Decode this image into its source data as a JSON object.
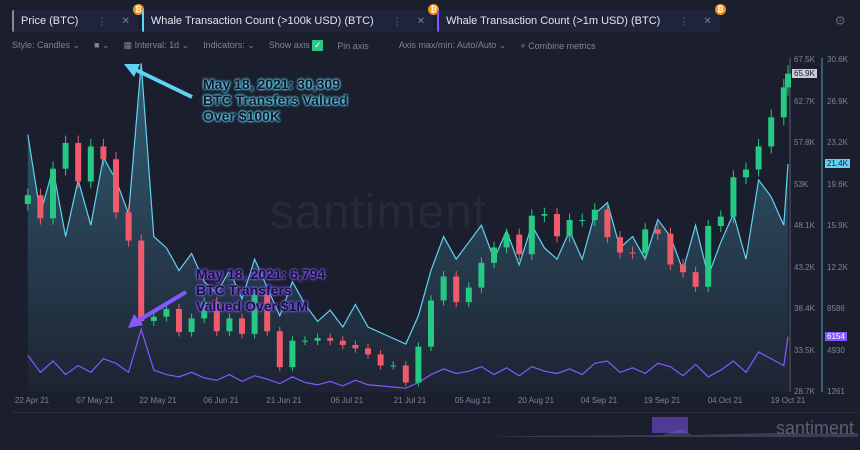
{
  "tabs": [
    {
      "label": "Price (BTC)",
      "color": "#8a8a8a"
    },
    {
      "label": "Whale Transaction Count (>100k USD) (BTC)",
      "color": "#5fd3f3"
    },
    {
      "label": "Whale Transaction Count (>1m USD) (BTC)",
      "color": "#8358ff"
    }
  ],
  "toolbar": {
    "style": "Style: Candles",
    "interval": "Interval: 1d",
    "indicators": "Indicators:",
    "show_axis": "Show axis",
    "pin_axis": "Pin axis",
    "axis_maxmin": "Axis max/min: Auto/Auto",
    "combine": "+ Combine metrics"
  },
  "watermark": "santiment",
  "nav_watermark": "santiment",
  "annotations": {
    "whale100k": [
      "May 18, 2021: 30,309",
      "BTC Transfers Valued",
      "Over $100K"
    ],
    "whale1m": [
      "May 18, 2021: 6,794",
      "BTC Transfers",
      "Valued Over $1M"
    ]
  },
  "chart_data": {
    "type": "candlestick+line",
    "x": [
      "2021-04-21",
      "2021-04-24",
      "2021-04-27",
      "2021-04-30",
      "2021-05-03",
      "2021-05-06",
      "2021-05-09",
      "2021-05-12",
      "2021-05-15",
      "2021-05-18",
      "2021-05-21",
      "2021-05-24",
      "2021-05-27",
      "2021-05-30",
      "2021-06-02",
      "2021-06-05",
      "2021-06-08",
      "2021-06-11",
      "2021-06-14",
      "2021-06-17",
      "2021-06-20",
      "2021-06-23",
      "2021-06-26",
      "2021-06-29",
      "2021-07-02",
      "2021-07-05",
      "2021-07-08",
      "2021-07-11",
      "2021-07-14",
      "2021-07-17",
      "2021-07-20",
      "2021-07-23",
      "2021-07-26",
      "2021-07-29",
      "2021-08-01",
      "2021-08-04",
      "2021-08-07",
      "2021-08-10",
      "2021-08-13",
      "2021-08-16",
      "2021-08-19",
      "2021-08-22",
      "2021-08-25",
      "2021-08-28",
      "2021-08-31",
      "2021-09-03",
      "2021-09-06",
      "2021-09-09",
      "2021-09-12",
      "2021-09-15",
      "2021-09-18",
      "2021-09-21",
      "2021-09-24",
      "2021-09-27",
      "2021-09-30",
      "2021-10-03",
      "2021-10-06",
      "2021-10-09",
      "2021-10-12",
      "2021-10-15",
      "2021-10-18",
      "2021-10-19"
    ],
    "series": [
      {
        "name": "Price (BTC)",
        "color": "#26c983",
        "down_color": "#ef5b6b",
        "axis": "price",
        "values": [
          51700,
          49000,
          54800,
          57800,
          53300,
          57400,
          55900,
          49700,
          46400,
          37000,
          37500,
          38400,
          35700,
          37300,
          39200,
          35800,
          37300,
          35500,
          40200,
          35800,
          31600,
          34700,
          34700,
          35000,
          34700,
          34200,
          33800,
          33100,
          31800,
          31800,
          29800,
          34000,
          39400,
          42200,
          39200,
          40900,
          43800,
          45600,
          47100,
          44800,
          49300,
          49500,
          46900,
          48800,
          48800,
          50000,
          46800,
          45000,
          44900,
          47700,
          47200,
          43600,
          42700,
          41000,
          48100,
          49200,
          53800,
          54700,
          57400,
          60800,
          64300,
          65900
        ]
      },
      {
        "name": "Whale Transaction Count (>100k USD) (BTC)",
        "color": "#5fd3f3",
        "axis": "whale",
        "values": [
          24000,
          17000,
          21000,
          15000,
          20000,
          16000,
          22000,
          20000,
          17000,
          30309,
          15000,
          14000,
          12000,
          13500,
          11000,
          10000,
          12000,
          9500,
          13000,
          10500,
          8000,
          11000,
          9000,
          7500,
          8500,
          7000,
          9000,
          7000,
          6500,
          6000,
          5500,
          8000,
          12000,
          15000,
          13000,
          14500,
          16000,
          13000,
          15500,
          12500,
          16000,
          14000,
          13000,
          15500,
          13000,
          17000,
          18000,
          14000,
          15000,
          13000,
          16500,
          15000,
          12000,
          16000,
          11500,
          14500,
          17000,
          13000,
          20000,
          18500,
          16000,
          21400
        ]
      },
      {
        "name": "Whale Transaction Count (>1m USD) (BTC)",
        "color": "#8358ff",
        "axis": "whale",
        "values": [
          4500,
          3000,
          4000,
          2800,
          3600,
          3000,
          4200,
          3800,
          3000,
          6794,
          3200,
          2800,
          2600,
          3000,
          2500,
          2300,
          2800,
          2200,
          2700,
          2400,
          2000,
          2600,
          2100,
          1900,
          2200,
          1800,
          2300,
          1900,
          1800,
          1700,
          1600,
          2100,
          2800,
          3300,
          2900,
          3100,
          3500,
          2800,
          3400,
          2700,
          3500,
          3100,
          2900,
          3300,
          2800,
          3800,
          4000,
          3000,
          3400,
          2900,
          3800,
          3500,
          2700,
          3700,
          2600,
          3200,
          4000,
          3000,
          4800,
          4200,
          3600,
          6154
        ]
      }
    ],
    "price_axis": {
      "range": [
        28700,
        67500
      ],
      "ticks": [
        "67.5K",
        "62.7K",
        "57.8K",
        "53K",
        "48.1K",
        "43.2K",
        "38.4K",
        "33.5K",
        "28.7K"
      ],
      "last_label": "65.9K"
    },
    "whale_axis": {
      "range": [
        1261,
        30600
      ],
      "ticks": [
        "30.6K",
        "26.9K",
        "23.2K",
        "19.6K",
        "15.9K",
        "12.2K",
        "8586",
        "4930",
        "1261"
      ],
      "last_label_100k": "21.4K",
      "last_label_1m": "6154"
    },
    "x_ticks": [
      {
        "date": "2021-04-22",
        "label": "22 Apr 21"
      },
      {
        "date": "2021-05-07",
        "label": "07 May 21"
      },
      {
        "date": "2021-05-22",
        "label": "22 May 21"
      },
      {
        "date": "2021-06-06",
        "label": "06 Jun 21"
      },
      {
        "date": "2021-06-21",
        "label": "21 Jun 21"
      },
      {
        "date": "2021-07-06",
        "label": "06 Jul 21"
      },
      {
        "date": "2021-07-21",
        "label": "21 Jul 21"
      },
      {
        "date": "2021-08-05",
        "label": "05 Aug 21"
      },
      {
        "date": "2021-08-20",
        "label": "20 Aug 21"
      },
      {
        "date": "2021-09-04",
        "label": "04 Sep 21"
      },
      {
        "date": "2021-09-19",
        "label": "19 Sep 21"
      },
      {
        "date": "2021-10-04",
        "label": "04 Oct 21"
      },
      {
        "date": "2021-10-19",
        "label": "19 Oct 21"
      }
    ],
    "grid": false
  }
}
